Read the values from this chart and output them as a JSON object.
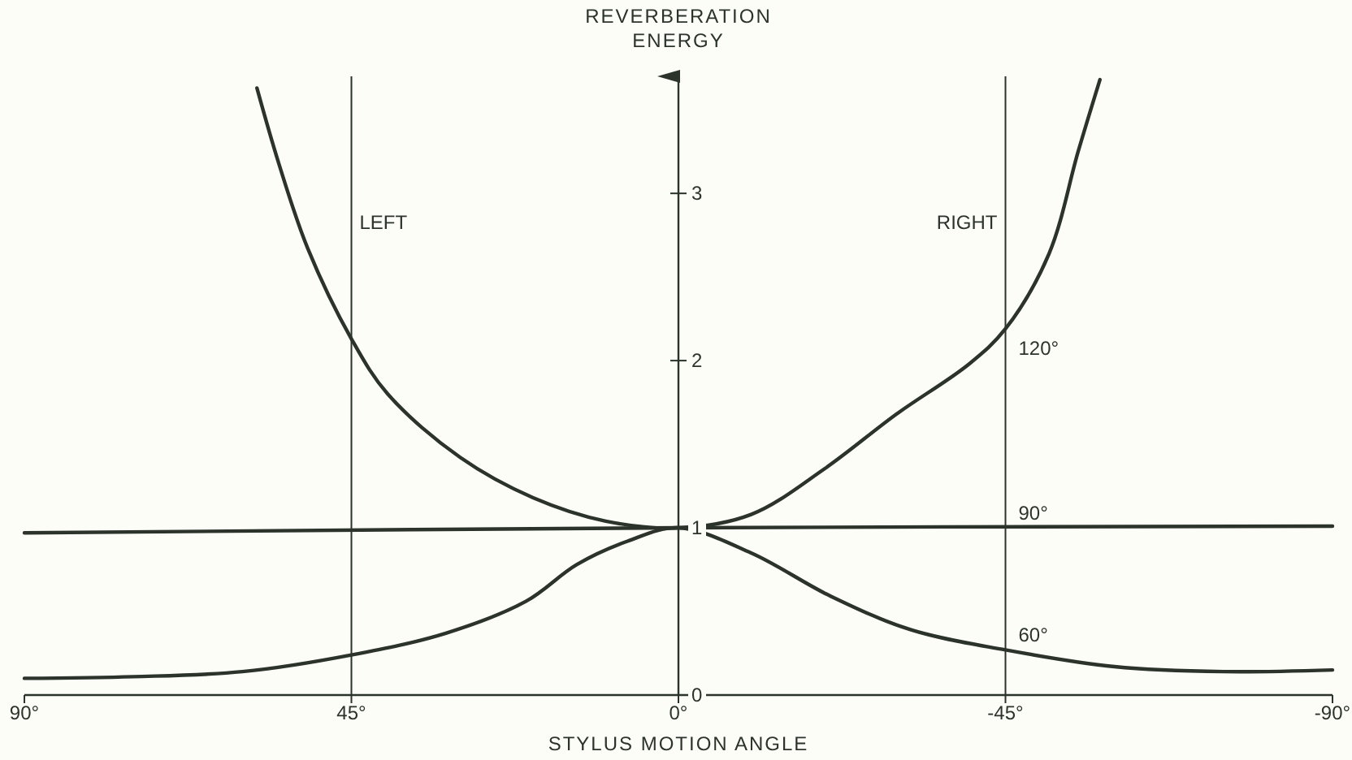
{
  "chart_data": {
    "type": "line",
    "xlabel": "STYLUS MOTION ANGLE",
    "ylabel": "REVERBERATION ENERGY",
    "xlim": [
      90,
      -90
    ],
    "ylim": [
      0,
      3.7
    ],
    "xticks": [
      {
        "value": 90,
        "label": "90°"
      },
      {
        "value": 45,
        "label": "45°"
      },
      {
        "value": 0,
        "label": "0°"
      },
      {
        "value": -45,
        "label": "-45°"
      },
      {
        "value": -90,
        "label": "-90°"
      }
    ],
    "yticks": [
      0,
      1,
      2,
      3
    ],
    "grid": false,
    "marker": "none",
    "line_style": "solid",
    "ref_lines": [
      {
        "axis": "x",
        "value": 45,
        "label": "LEFT",
        "color": "#2b332b"
      },
      {
        "axis": "x",
        "value": -45,
        "label": "RIGHT",
        "color": "#2b332b"
      }
    ],
    "series": [
      {
        "name": "120°",
        "color": "#2b332b",
        "x": [
          58,
          55,
          51,
          45,
          40,
          30,
          20,
          10,
          0,
          -10,
          -20,
          -30,
          -40,
          -45,
          -51,
          -55,
          -58
        ],
        "values": [
          3.63,
          3.18,
          2.67,
          2.13,
          1.8,
          1.42,
          1.18,
          1.04,
          1,
          1.08,
          1.35,
          1.68,
          1.98,
          2.19,
          2.64,
          3.25,
          3.68
        ]
      },
      {
        "name": "90°",
        "color": "#2b332b",
        "x": [
          90,
          0,
          -90
        ],
        "values": [
          0.97,
          1,
          1.01
        ]
      },
      {
        "name": "60°",
        "color": "#2b332b",
        "x": [
          90,
          75,
          60,
          45,
          32,
          21,
          14,
          7,
          0,
          -10,
          -21,
          -32,
          -45,
          -60,
          -75,
          -90
        ],
        "values": [
          0.1,
          0.11,
          0.14,
          0.24,
          0.37,
          0.56,
          0.78,
          0.92,
          1,
          0.85,
          0.59,
          0.39,
          0.27,
          0.17,
          0.14,
          0.15
        ]
      }
    ]
  }
}
